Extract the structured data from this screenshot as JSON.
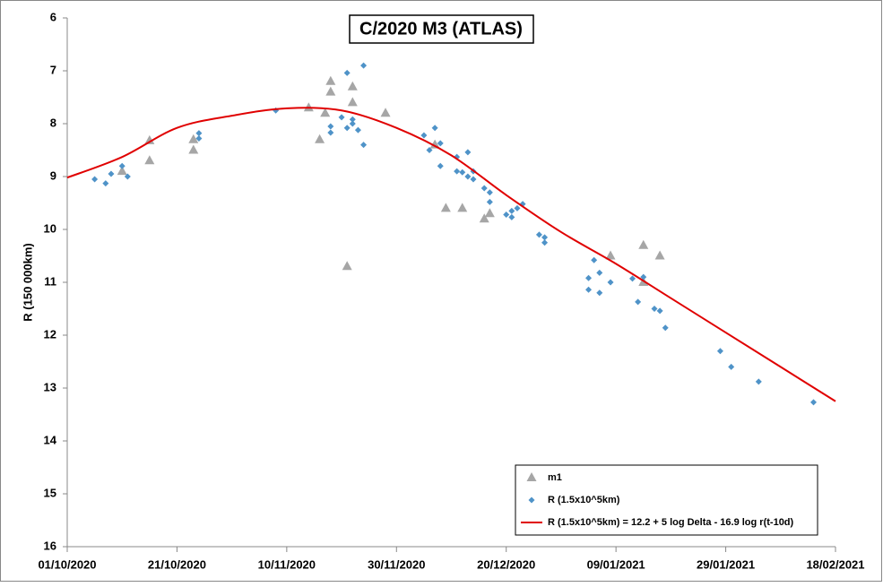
{
  "chart_data": {
    "type": "scatter",
    "title": "C/2020 M3 (ATLAS)",
    "y_label": "R (150 000km)",
    "xlim": [
      "2020-10-01",
      "2021-02-18"
    ],
    "xticks": [
      {
        "value": "2020-10-01",
        "label": "01/10/2020"
      },
      {
        "value": "2020-10-21",
        "label": "21/10/2020"
      },
      {
        "value": "2020-11-10",
        "label": "10/11/2020"
      },
      {
        "value": "2020-11-30",
        "label": "30/11/2020"
      },
      {
        "value": "2020-12-20",
        "label": "20/12/2020"
      },
      {
        "value": "2021-01-09",
        "label": "09/01/2021"
      },
      {
        "value": "2021-01-29",
        "label": "29/01/2021"
      },
      {
        "value": "2021-02-18",
        "label": "18/02/2021"
      }
    ],
    "ylim": [
      6,
      16
    ],
    "yticks": [
      6,
      7,
      8,
      9,
      10,
      11,
      12,
      13,
      14,
      15,
      16
    ],
    "y_reversed": true,
    "legend": "bottom-right",
    "series": [
      {
        "name": "m1",
        "color": "#a6a6a6",
        "marker": "triangle",
        "x": [
          "2020-10-11",
          "2020-10-16",
          "2020-10-16",
          "2020-10-24",
          "2020-10-24",
          "2020-11-14",
          "2020-11-16",
          "2020-11-17",
          "2020-11-18",
          "2020-11-18",
          "2020-11-21",
          "2020-11-22",
          "2020-11-22",
          "2020-11-28",
          "2020-12-07",
          "2020-12-09",
          "2020-12-12",
          "2020-12-16",
          "2020-12-17",
          "2021-01-08",
          "2021-01-14",
          "2021-01-14",
          "2021-01-17"
        ],
        "values": [
          8.9,
          8.32,
          8.7,
          8.3,
          8.5,
          7.7,
          8.3,
          7.8,
          7.2,
          7.4,
          10.7,
          7.3,
          7.6,
          7.8,
          8.4,
          9.6,
          9.6,
          9.8,
          9.7,
          10.5,
          10.3,
          11.0,
          10.5
        ]
      },
      {
        "name": "R (1.5x10^5km)",
        "color": "#4f93c8",
        "marker": "diamond",
        "x": [
          "2020-10-06",
          "2020-10-08",
          "2020-10-09",
          "2020-10-11",
          "2020-10-12",
          "2020-10-25",
          "2020-10-25",
          "2020-11-08",
          "2020-11-18",
          "2020-11-18",
          "2020-11-20",
          "2020-11-21",
          "2020-11-21",
          "2020-11-22",
          "2020-11-22",
          "2020-11-23",
          "2020-11-24",
          "2020-11-24",
          "2020-12-05",
          "2020-12-06",
          "2020-12-07",
          "2020-12-08",
          "2020-12-08",
          "2020-12-11",
          "2020-12-11",
          "2020-12-12",
          "2020-12-13",
          "2020-12-13",
          "2020-12-14",
          "2020-12-14",
          "2020-12-16",
          "2020-12-17",
          "2020-12-17",
          "2020-12-20",
          "2020-12-21",
          "2020-12-21",
          "2020-12-22",
          "2020-12-23",
          "2020-12-26",
          "2020-12-27",
          "2020-12-27",
          "2021-01-04",
          "2021-01-04",
          "2021-01-05",
          "2021-01-06",
          "2021-01-06",
          "2021-01-08",
          "2021-01-12",
          "2021-01-13",
          "2021-01-14",
          "2021-01-16",
          "2021-01-17",
          "2021-01-18",
          "2021-01-28",
          "2021-01-30",
          "2021-02-04",
          "2021-02-14"
        ],
        "values": [
          9.05,
          9.13,
          8.95,
          8.8,
          9.0,
          8.18,
          8.28,
          7.75,
          8.17,
          8.05,
          7.88,
          7.04,
          8.08,
          8.0,
          7.92,
          8.12,
          6.9,
          8.4,
          8.22,
          8.5,
          8.08,
          8.37,
          8.8,
          8.63,
          8.9,
          8.92,
          8.54,
          9.0,
          9.05,
          8.9,
          9.22,
          9.3,
          9.48,
          9.72,
          9.77,
          9.65,
          9.6,
          9.52,
          10.1,
          10.15,
          10.25,
          10.92,
          11.14,
          10.58,
          10.82,
          11.2,
          11.0,
          10.93,
          11.37,
          10.9,
          11.5,
          11.54,
          11.86,
          12.3,
          12.6,
          12.88,
          13.27
        ]
      },
      {
        "name": "R (1.5x10^5km) = 12.2 + 5 log Delta - 16.9  log r(t-10d)",
        "color": "#e00000",
        "marker": "line",
        "x": [
          "2020-10-01",
          "2020-10-11",
          "2020-10-21",
          "2020-10-31",
          "2020-11-10",
          "2020-11-20",
          "2020-11-30",
          "2020-12-10",
          "2020-12-20",
          "2020-12-30",
          "2021-01-09",
          "2021-01-19",
          "2021-01-29",
          "2021-02-08",
          "2021-02-18"
        ],
        "values": [
          9.02,
          8.63,
          8.08,
          7.85,
          7.71,
          7.75,
          8.08,
          8.6,
          9.35,
          10.05,
          10.65,
          11.3,
          11.95,
          12.6,
          13.25
        ]
      }
    ]
  }
}
